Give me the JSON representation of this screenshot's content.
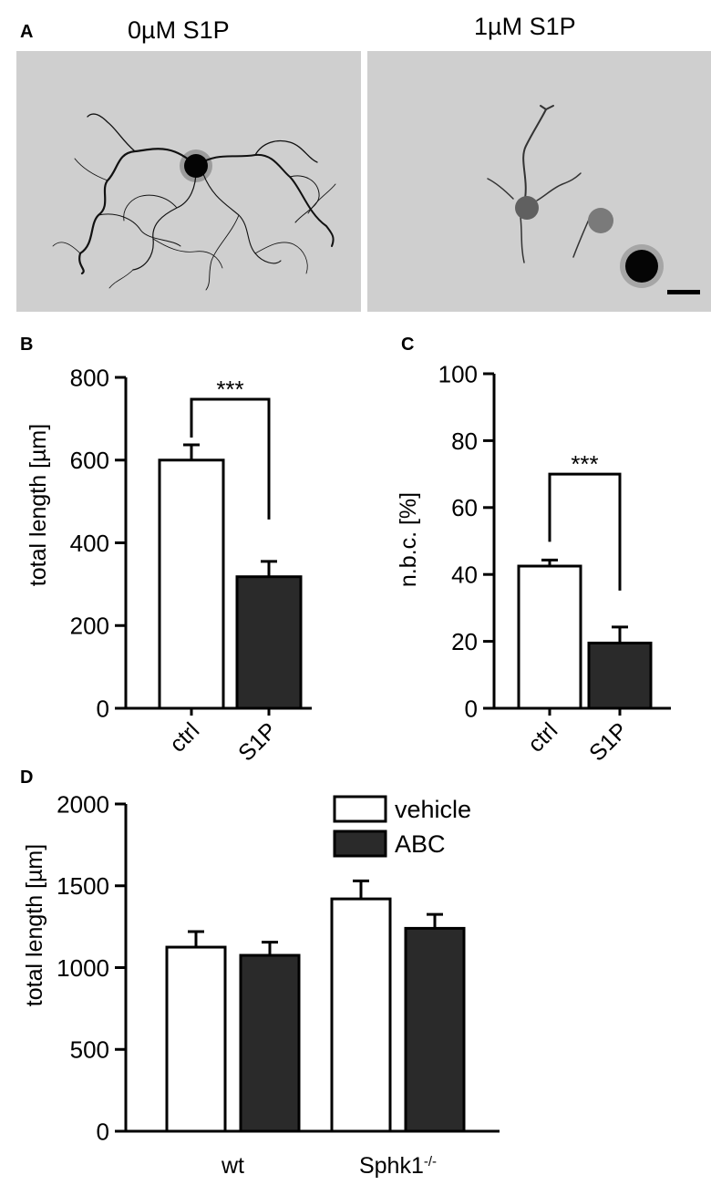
{
  "figure": {
    "panels": [
      {
        "letter": "A"
      },
      {
        "letter": "B"
      },
      {
        "letter": "C"
      },
      {
        "letter": "D"
      }
    ]
  },
  "micrographs": [
    {
      "title": "0µM S1P",
      "description_icon": "neuron-micrograph-control"
    },
    {
      "title": "1µM S1P",
      "description_icon": "neuron-micrograph-s1p"
    }
  ],
  "chart_data": [
    {
      "panel": "B",
      "type": "bar",
      "categories": [
        "ctrl",
        "S1P"
      ],
      "values": [
        600,
        318
      ],
      "errors": [
        37,
        37
      ],
      "colors": [
        "#ffffff",
        "#2a2a2a"
      ],
      "ylabel": "total length [µm]",
      "ylim": [
        0,
        800
      ],
      "yticks": [
        "0",
        "200",
        "400",
        "600",
        "800"
      ],
      "significance": "***"
    },
    {
      "panel": "C",
      "type": "bar",
      "categories": [
        "ctrl",
        "S1P"
      ],
      "values": [
        42.5,
        19.5
      ],
      "errors": [
        1.8,
        4.8
      ],
      "colors": [
        "#ffffff",
        "#2a2a2a"
      ],
      "ylabel": "n.b.c. [%]",
      "ylim": [
        0,
        100
      ],
      "yticks": [
        "0",
        "20",
        "40",
        "60",
        "80",
        "100"
      ],
      "significance": "***"
    },
    {
      "panel": "D",
      "type": "bar",
      "categories": [
        "wt",
        "Sphk1"
      ],
      "category_superscript": [
        "",
        "-/-"
      ],
      "series": [
        {
          "name": "vehicle",
          "values": [
            1125,
            1420
          ],
          "errors": [
            95,
            110
          ],
          "color": "#ffffff"
        },
        {
          "name": "ABC",
          "values": [
            1075,
            1240
          ],
          "errors": [
            80,
            85
          ],
          "color": "#2a2a2a"
        }
      ],
      "ylabel": "total length [µm]",
      "ylim": [
        0,
        2000
      ],
      "yticks": [
        "0",
        "500",
        "1000",
        "1500",
        "2000"
      ],
      "legend_position": "top-right"
    }
  ]
}
